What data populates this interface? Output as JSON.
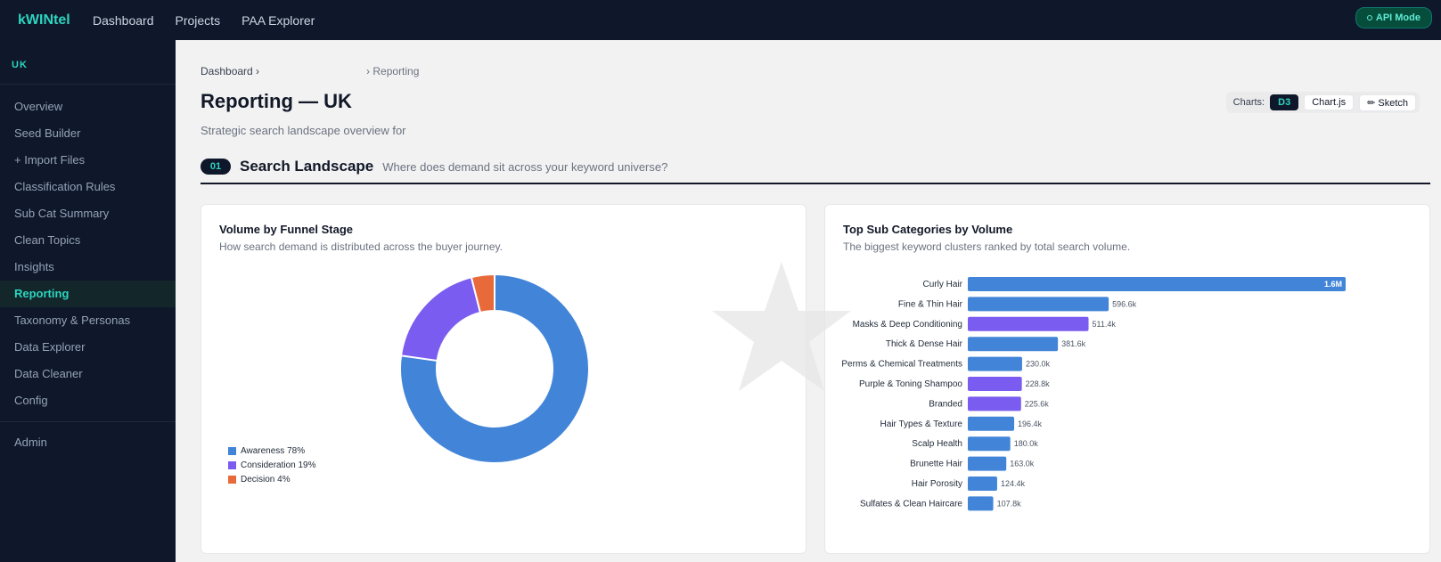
{
  "app": {
    "brand": "kWINtel",
    "api_mode": "API Mode"
  },
  "topnav": [
    "Dashboard",
    "Projects",
    "PAA Explorer"
  ],
  "sidebar": {
    "region": "UK",
    "items": [
      "Overview",
      "Seed Builder",
      "+ Import Files",
      "Classification Rules",
      "Sub Cat Summary",
      "Clean Topics",
      "Insights",
      "Reporting",
      "Taxonomy & Personas",
      "Data Explorer",
      "Data Cleaner",
      "Config"
    ],
    "active": "Reporting",
    "admin": "Admin"
  },
  "breadcrumb": {
    "root": "Dashboard ›",
    "current": "› Reporting"
  },
  "page": {
    "title": "Reporting — UK",
    "subtitle": "Strategic search landscape overview for"
  },
  "chart_switch": {
    "label": "Charts:",
    "options": [
      "D3",
      "Chart.js",
      "✏ Sketch"
    ],
    "selected": "D3"
  },
  "section": {
    "number": "01",
    "title": "Search Landscape",
    "description": "Where does demand sit across your keyword universe?"
  },
  "funnel_card": {
    "title": "Volume by Funnel Stage",
    "subtitle": "How search demand is distributed across the buyer journey."
  },
  "subcat_card": {
    "title": "Top Sub Categories by Volume",
    "subtitle": "The biggest keyword clusters ranked by total search volume."
  },
  "colors": {
    "awareness": "#4285d8",
    "consideration": "#7a5cf0",
    "decision": "#e86a3a",
    "accent": "#2dd4bf"
  },
  "chart_data": [
    {
      "type": "pie",
      "title": "Volume by Funnel Stage",
      "donut": true,
      "slices": [
        {
          "name": "Awareness",
          "value": 78,
          "label": "Awareness 78%",
          "color": "#4285d8"
        },
        {
          "name": "Consideration",
          "value": 19,
          "label": "Consideration 19%",
          "color": "#7a5cf0"
        },
        {
          "name": "Decision",
          "value": 4,
          "label": "Decision 4%",
          "color": "#e86a3a"
        }
      ],
      "legend": "bottom-left"
    },
    {
      "type": "bar",
      "orientation": "horizontal",
      "title": "Top Sub Categories by Volume",
      "categories": [
        "Curly Hair",
        "Fine & Thin Hair",
        "Masks & Deep Conditioning",
        "Thick & Dense Hair",
        "Perms & Chemical Treatments",
        "Purple & Toning Shampoo",
        "Branded",
        "Hair Types & Texture",
        "Scalp Health",
        "Brunette Hair",
        "Hair Porosity",
        "Sulfates & Clean Haircare"
      ],
      "values": [
        1600000,
        596600,
        511400,
        381600,
        230000,
        228800,
        225600,
        196400,
        180000,
        163000,
        124400,
        107800
      ],
      "value_labels": [
        "1.6M",
        "596.6k",
        "511.4k",
        "381.6k",
        "230.0k",
        "228.8k",
        "225.6k",
        "196.4k",
        "180.0k",
        "163.0k",
        "124.4k",
        "107.8k"
      ],
      "bar_colors": [
        "#4285d8",
        "#4285d8",
        "#7a5cf0",
        "#4285d8",
        "#4285d8",
        "#7a5cf0",
        "#7a5cf0",
        "#4285d8",
        "#4285d8",
        "#4285d8",
        "#4285d8",
        "#4285d8"
      ],
      "xlim": [
        0,
        1600000
      ]
    }
  ]
}
